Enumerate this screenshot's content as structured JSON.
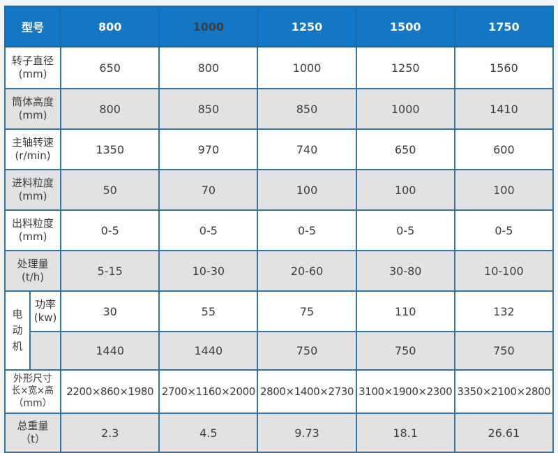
{
  "table": {
    "header": {
      "label": "型号",
      "models": [
        "800",
        "1000",
        "1250",
        "1500",
        "1750"
      ]
    },
    "rows": [
      {
        "label": "转子直径",
        "unit": "(mm)",
        "values": [
          "650",
          "800",
          "1000",
          "1250",
          "1560"
        ]
      },
      {
        "label": "筒体高度",
        "unit": "(mm)",
        "values": [
          "800",
          "850",
          "850",
          "1000",
          "1410"
        ]
      },
      {
        "label": "主轴转速",
        "unit": "(r/min)",
        "values": [
          "1350",
          "970",
          "740",
          "650",
          "600"
        ]
      },
      {
        "label": "进料粒度",
        "unit": "(mm)",
        "values": [
          "50",
          "70",
          "100",
          "100",
          "100"
        ]
      },
      {
        "label": "出料粒度",
        "unit": "(mm)",
        "values": [
          "0-5",
          "0-5",
          "0-5",
          "0-5",
          "0-5"
        ]
      },
      {
        "label": "处理量",
        "unit": "(t/h)",
        "values": [
          "5-15",
          "10-30",
          "20-60",
          "30-80",
          "10-100"
        ]
      }
    ],
    "motor": {
      "label": "电动机",
      "power_label": "功率",
      "power_unit": "(kw)",
      "power_values": [
        "30",
        "55",
        "75",
        "110",
        "132"
      ],
      "speed_values": [
        "1440",
        "1440",
        "750",
        "750",
        "750"
      ]
    },
    "dims": {
      "label_line1": "外形尺寸",
      "label_line2": "长×宽×高",
      "label_line3": "（mm）",
      "values": [
        "2200×860×1980",
        "2700×1160×2000",
        "2800×1400×2730",
        "3100×1900×2300",
        "3350×2100×2800"
      ]
    },
    "weight": {
      "label": "总重量",
      "unit": "（t）",
      "values": [
        "2.3",
        "4.5",
        "9.73",
        "18.1",
        "26.61"
      ]
    }
  },
  "colors": {
    "header_bg": "#1277c6",
    "header_text": "#ffffff",
    "header_text_dark": "#3c3c3c",
    "border_inner": "#3376a6",
    "border_outer": "#20618f",
    "row_alt_bg": "#e2e2e2",
    "row_bg": "#ffffff",
    "cell_text": "#3c3c3c",
    "page_bg": "#f3f6f9"
  }
}
